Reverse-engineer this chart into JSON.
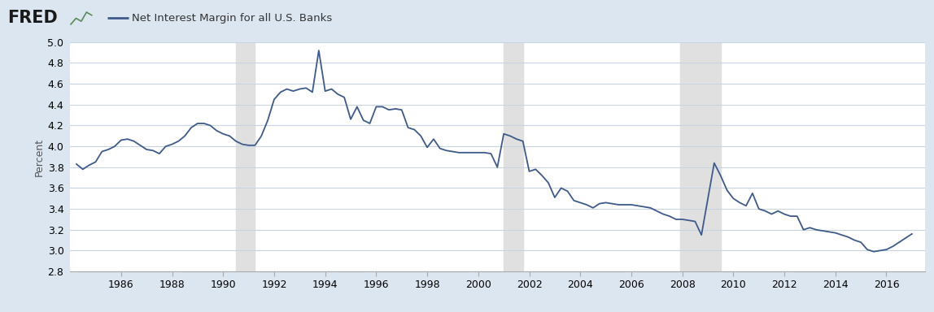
{
  "title": "Net Interest Margin for all U.S. Banks",
  "ylabel": "Percent",
  "line_color": "#3d5a8a",
  "line_width": 1.3,
  "background_color": "#dce6f0",
  "plot_background_color": "#ffffff",
  "grid_color": "#c8d4e0",
  "ylim": [
    2.8,
    5.0
  ],
  "yticks": [
    2.8,
    3.0,
    3.2,
    3.4,
    3.6,
    3.8,
    4.0,
    4.2,
    4.4,
    4.6,
    4.8,
    5.0
  ],
  "recession_shading": [
    {
      "start": 1990.5,
      "end": 1991.25
    },
    {
      "start": 2001.0,
      "end": 2001.75
    },
    {
      "start": 2007.9,
      "end": 2009.5
    }
  ],
  "recession_color": "#e0e0e0",
  "xtick_years": [
    1986,
    1988,
    1990,
    1992,
    1994,
    1996,
    1998,
    2000,
    2002,
    2004,
    2006,
    2008,
    2010,
    2012,
    2014,
    2016
  ],
  "xmin": 1984.0,
  "xmax": 2017.5,
  "data": [
    [
      1984.25,
      3.83
    ],
    [
      1984.5,
      3.78
    ],
    [
      1984.75,
      3.82
    ],
    [
      1985.0,
      3.85
    ],
    [
      1985.25,
      3.95
    ],
    [
      1985.5,
      3.97
    ],
    [
      1985.75,
      4.0
    ],
    [
      1986.0,
      4.06
    ],
    [
      1986.25,
      4.07
    ],
    [
      1986.5,
      4.05
    ],
    [
      1986.75,
      4.01
    ],
    [
      1987.0,
      3.97
    ],
    [
      1987.25,
      3.96
    ],
    [
      1987.5,
      3.93
    ],
    [
      1987.75,
      4.0
    ],
    [
      1988.0,
      4.02
    ],
    [
      1988.25,
      4.05
    ],
    [
      1988.5,
      4.1
    ],
    [
      1988.75,
      4.18
    ],
    [
      1989.0,
      4.22
    ],
    [
      1989.25,
      4.22
    ],
    [
      1989.5,
      4.2
    ],
    [
      1989.75,
      4.15
    ],
    [
      1990.0,
      4.12
    ],
    [
      1990.25,
      4.1
    ],
    [
      1990.5,
      4.05
    ],
    [
      1990.75,
      4.02
    ],
    [
      1991.0,
      4.01
    ],
    [
      1991.25,
      4.01
    ],
    [
      1991.5,
      4.1
    ],
    [
      1991.75,
      4.25
    ],
    [
      1992.0,
      4.45
    ],
    [
      1992.25,
      4.52
    ],
    [
      1992.5,
      4.55
    ],
    [
      1992.75,
      4.53
    ],
    [
      1993.0,
      4.55
    ],
    [
      1993.25,
      4.56
    ],
    [
      1993.5,
      4.52
    ],
    [
      1993.75,
      4.92
    ],
    [
      1994.0,
      4.53
    ],
    [
      1994.25,
      4.55
    ],
    [
      1994.5,
      4.5
    ],
    [
      1994.75,
      4.47
    ],
    [
      1995.0,
      4.26
    ],
    [
      1995.25,
      4.38
    ],
    [
      1995.5,
      4.25
    ],
    [
      1995.75,
      4.22
    ],
    [
      1996.0,
      4.38
    ],
    [
      1996.25,
      4.38
    ],
    [
      1996.5,
      4.35
    ],
    [
      1996.75,
      4.36
    ],
    [
      1997.0,
      4.35
    ],
    [
      1997.25,
      4.18
    ],
    [
      1997.5,
      4.16
    ],
    [
      1997.75,
      4.1
    ],
    [
      1998.0,
      3.99
    ],
    [
      1998.25,
      4.07
    ],
    [
      1998.5,
      3.98
    ],
    [
      1998.75,
      3.96
    ],
    [
      1999.0,
      3.95
    ],
    [
      1999.25,
      3.94
    ],
    [
      1999.5,
      3.94
    ],
    [
      1999.75,
      3.94
    ],
    [
      2000.0,
      3.94
    ],
    [
      2000.25,
      3.94
    ],
    [
      2000.5,
      3.93
    ],
    [
      2000.75,
      3.8
    ],
    [
      2001.0,
      4.12
    ],
    [
      2001.25,
      4.1
    ],
    [
      2001.5,
      4.07
    ],
    [
      2001.75,
      4.05
    ],
    [
      2002.0,
      3.76
    ],
    [
      2002.25,
      3.78
    ],
    [
      2002.5,
      3.72
    ],
    [
      2002.75,
      3.65
    ],
    [
      2003.0,
      3.51
    ],
    [
      2003.25,
      3.6
    ],
    [
      2003.5,
      3.57
    ],
    [
      2003.75,
      3.48
    ],
    [
      2004.0,
      3.46
    ],
    [
      2004.25,
      3.44
    ],
    [
      2004.5,
      3.41
    ],
    [
      2004.75,
      3.45
    ],
    [
      2005.0,
      3.46
    ],
    [
      2005.25,
      3.45
    ],
    [
      2005.5,
      3.44
    ],
    [
      2005.75,
      3.44
    ],
    [
      2006.0,
      3.44
    ],
    [
      2006.25,
      3.43
    ],
    [
      2006.5,
      3.42
    ],
    [
      2006.75,
      3.41
    ],
    [
      2007.0,
      3.38
    ],
    [
      2007.25,
      3.35
    ],
    [
      2007.5,
      3.33
    ],
    [
      2007.75,
      3.3
    ],
    [
      2008.0,
      3.3
    ],
    [
      2008.25,
      3.29
    ],
    [
      2008.5,
      3.28
    ],
    [
      2008.75,
      3.15
    ],
    [
      2009.25,
      3.84
    ],
    [
      2009.5,
      3.72
    ],
    [
      2009.75,
      3.58
    ],
    [
      2010.0,
      3.5
    ],
    [
      2010.25,
      3.46
    ],
    [
      2010.5,
      3.43
    ],
    [
      2010.75,
      3.55
    ],
    [
      2011.0,
      3.4
    ],
    [
      2011.25,
      3.38
    ],
    [
      2011.5,
      3.35
    ],
    [
      2011.75,
      3.38
    ],
    [
      2012.0,
      3.35
    ],
    [
      2012.25,
      3.33
    ],
    [
      2012.5,
      3.33
    ],
    [
      2012.75,
      3.2
    ],
    [
      2013.0,
      3.22
    ],
    [
      2013.25,
      3.2
    ],
    [
      2013.5,
      3.19
    ],
    [
      2013.75,
      3.18
    ],
    [
      2014.0,
      3.17
    ],
    [
      2014.25,
      3.15
    ],
    [
      2014.5,
      3.13
    ],
    [
      2014.75,
      3.1
    ],
    [
      2015.0,
      3.08
    ],
    [
      2015.25,
      3.01
    ],
    [
      2015.5,
      2.99
    ],
    [
      2015.75,
      3.0
    ],
    [
      2016.0,
      3.01
    ],
    [
      2016.25,
      3.04
    ],
    [
      2016.5,
      3.08
    ],
    [
      2016.75,
      3.12
    ],
    [
      2017.0,
      3.16
    ]
  ]
}
